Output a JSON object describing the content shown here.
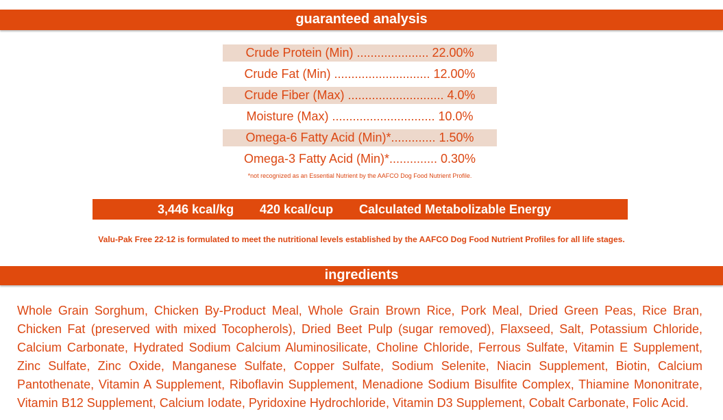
{
  "sections": {
    "guaranteed_analysis_title": "guaranteed analysis",
    "ingredients_title": "ingredients"
  },
  "analysis": [
    {
      "text": "Crude Protein (Min) ..................... 22.00%"
    },
    {
      "text": "Crude Fat (Min) ............................ 12.00%"
    },
    {
      "text": "Crude Fiber (Max) ............................ 4.0%"
    },
    {
      "text": "Moisture (Max) .............................. 10.0%"
    },
    {
      "text": "Omega-6 Fatty Acid (Min)*............. 1.50%"
    },
    {
      "text": "Omega-3 Fatty Acid (Min)*.............. 0.30%"
    }
  ],
  "footnote": "*not recognized as an Essential Nutrient by the AAFCO Dog Food Nutrient Profile.",
  "energy": {
    "per_kg": "3,446 kcal/kg",
    "per_cup": "420 kcal/cup",
    "label": "Calculated Metabolizable Energy"
  },
  "statement": "Valu-Pak Free 22-12  is formulated to meet the nutritional levels established by the AAFCO Dog Food Nutrient Profiles for all life stages.",
  "ingredients_text": "Whole Grain Sorghum, Chicken By-Product Meal, Whole Grain Brown Rice, Pork Meal, Dried Green Peas, Rice Bran, Chicken Fat (preserved with mixed Tocopherols), Dried Beet Pulp (sugar removed), Flaxseed, Salt, Potassium Chloride, Calcium Carbonate, Hydrated Sodium Calcium Aluminosilicate, Choline Chloride, Ferrous Sulfate, Vitamin E Supplement, Zinc Sulfate, Zinc Oxide, Manganese Sulfate, Copper Sulfate, Sodium Selenite, Niacin Supplement, Biotin, Calcium Pantothenate, Vitamin A Supplement, Riboflavin Supplement, Menadione Sodium Bisulfite Complex, Thiamine Mononitrate, Vitamin B12 Supplement, Calcium Iodate, Pyridoxine Hydrochloride, Vitamin D3 Supplement, Cobalt Carbonate, Folic Acid.",
  "colors": {
    "accent": "#e04a0d",
    "text": "#dc4712",
    "row_shade": "#edd8cb"
  }
}
